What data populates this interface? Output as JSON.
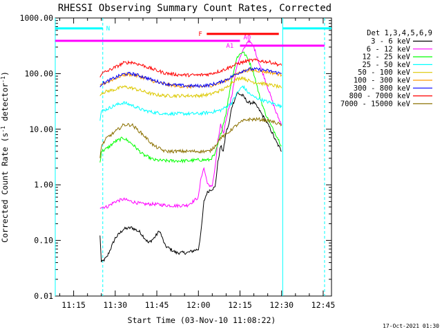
{
  "chart_data": {
    "type": "line",
    "title": "RHESSI Observing Summary Count Rates, Corrected",
    "xlabel": "Start Time (03-Nov-10 11:08:22)",
    "ylabel": "Corrected Count Rate (s⁻¹ detector⁻¹)",
    "ylabel_main": "Corrected Count Rate (s",
    "ylabel_exp1": "-1",
    "ylabel_mid": " detector",
    "ylabel_exp2": "-1",
    "ylabel_end": ")",
    "x_ticks": [
      "11:15",
      "11:30",
      "11:45",
      "12:00",
      "12:15",
      "12:30",
      "12:45"
    ],
    "x_tick_minutes": [
      15,
      30,
      45,
      60,
      75,
      90,
      105
    ],
    "xlim_minutes": [
      8.37,
      108
    ],
    "y_scale": "log",
    "ylim": [
      0.01,
      1000
    ],
    "y_ticks": [
      "1000.00",
      "100.00",
      "10.00",
      "1.00",
      "0.10",
      "0.01"
    ],
    "y_tick_values": [
      1000,
      100,
      10,
      1,
      0.1,
      0.01
    ],
    "legend_title": "Det 1,3,4,5,6,9",
    "legend_position": "top-right, outside plot",
    "series": [
      {
        "name": "3 - 6 keV",
        "color": "#000000",
        "points": [
          [
            24.5,
            0.12
          ],
          [
            25,
            0.04
          ],
          [
            27,
            0.05
          ],
          [
            30,
            0.11
          ],
          [
            33,
            0.16
          ],
          [
            36,
            0.17
          ],
          [
            39,
            0.14
          ],
          [
            42,
            0.09
          ],
          [
            44,
            0.11
          ],
          [
            46,
            0.15
          ],
          [
            48,
            0.08
          ],
          [
            52,
            0.06
          ],
          [
            56,
            0.06
          ],
          [
            60,
            0.07
          ],
          [
            61,
            0.15
          ],
          [
            62,
            0.5
          ],
          [
            63,
            0.7
          ],
          [
            64,
            0.8
          ],
          [
            66,
            0.9
          ],
          [
            67,
            2.5
          ],
          [
            68,
            5
          ],
          [
            69,
            4
          ],
          [
            70,
            9
          ],
          [
            71,
            12
          ],
          [
            72,
            25
          ],
          [
            74,
            45
          ],
          [
            76,
            40
          ],
          [
            78,
            30
          ],
          [
            80,
            30
          ],
          [
            82,
            22
          ],
          [
            84,
            15
          ],
          [
            86,
            10
          ],
          [
            88,
            6
          ],
          [
            90,
            4
          ]
        ]
      },
      {
        "name": "6 - 12 keV",
        "color": "#ff00ff",
        "points": [
          [
            24.5,
            0.4
          ],
          [
            27,
            0.4
          ],
          [
            30,
            0.5
          ],
          [
            33,
            0.55
          ],
          [
            36,
            0.5
          ],
          [
            40,
            0.45
          ],
          [
            44,
            0.45
          ],
          [
            48,
            0.43
          ],
          [
            52,
            0.42
          ],
          [
            56,
            0.43
          ],
          [
            58,
            0.5
          ],
          [
            60,
            0.6
          ],
          [
            61,
            1.4
          ],
          [
            62,
            2
          ],
          [
            63,
            1.2
          ],
          [
            64,
            0.9
          ],
          [
            65,
            1.0
          ],
          [
            66,
            2
          ],
          [
            67,
            6
          ],
          [
            68,
            12
          ],
          [
            69,
            8
          ],
          [
            70,
            15
          ],
          [
            72,
            40
          ],
          [
            74,
            150
          ],
          [
            76,
            250
          ],
          [
            78,
            400
          ],
          [
            80,
            300
          ],
          [
            82,
            150
          ],
          [
            84,
            80
          ],
          [
            86,
            40
          ],
          [
            88,
            20
          ],
          [
            90,
            12
          ]
        ]
      },
      {
        "name": "12 - 25 keV",
        "color": "#00ff00",
        "points": [
          [
            24.5,
            2.5
          ],
          [
            25,
            4
          ],
          [
            27,
            4.5
          ],
          [
            30,
            6
          ],
          [
            33,
            7
          ],
          [
            36,
            5.5
          ],
          [
            40,
            3.5
          ],
          [
            44,
            2.8
          ],
          [
            48,
            2.7
          ],
          [
            52,
            2.7
          ],
          [
            56,
            2.7
          ],
          [
            60,
            2.8
          ],
          [
            64,
            2.8
          ],
          [
            66,
            3.5
          ],
          [
            68,
            8
          ],
          [
            70,
            20
          ],
          [
            72,
            80
          ],
          [
            74,
            200
          ],
          [
            76,
            250
          ],
          [
            78,
            180
          ],
          [
            80,
            100
          ],
          [
            82,
            40
          ],
          [
            84,
            20
          ],
          [
            86,
            12
          ],
          [
            88,
            8
          ],
          [
            90,
            5
          ]
        ]
      },
      {
        "name": "25 - 50 keV",
        "color": "#00ffff",
        "points": [
          [
            24.5,
            15
          ],
          [
            25,
            21
          ],
          [
            27,
            23
          ],
          [
            30,
            27
          ],
          [
            33,
            30
          ],
          [
            36,
            27
          ],
          [
            40,
            22
          ],
          [
            44,
            20
          ],
          [
            48,
            19
          ],
          [
            52,
            19
          ],
          [
            56,
            19
          ],
          [
            60,
            19
          ],
          [
            64,
            20
          ],
          [
            68,
            22
          ],
          [
            70,
            25
          ],
          [
            72,
            30
          ],
          [
            74,
            45
          ],
          [
            76,
            60
          ],
          [
            78,
            45
          ],
          [
            80,
            38
          ],
          [
            82,
            35
          ],
          [
            84,
            32
          ],
          [
            86,
            30
          ],
          [
            88,
            28
          ],
          [
            90,
            25
          ]
        ]
      },
      {
        "name": "50 - 100 keV",
        "color": "#dcc800",
        "points": [
          [
            24.5,
            40
          ],
          [
            25,
            45
          ],
          [
            27,
            48
          ],
          [
            30,
            52
          ],
          [
            33,
            58
          ],
          [
            36,
            55
          ],
          [
            40,
            48
          ],
          [
            44,
            42
          ],
          [
            48,
            40
          ],
          [
            52,
            40
          ],
          [
            56,
            40
          ],
          [
            60,
            40
          ],
          [
            64,
            42
          ],
          [
            68,
            50
          ],
          [
            70,
            55
          ],
          [
            72,
            70
          ],
          [
            74,
            80
          ],
          [
            76,
            85
          ],
          [
            78,
            75
          ],
          [
            80,
            70
          ],
          [
            82,
            68
          ],
          [
            84,
            65
          ],
          [
            86,
            62
          ],
          [
            88,
            60
          ],
          [
            90,
            55
          ]
        ]
      },
      {
        "name": "100 - 300 keV",
        "color": "#ff9900",
        "points": [
          [
            24.5,
            58
          ],
          [
            25,
            64
          ],
          [
            27,
            70
          ],
          [
            30,
            82
          ],
          [
            33,
            95
          ],
          [
            36,
            96
          ],
          [
            40,
            85
          ],
          [
            44,
            72
          ],
          [
            48,
            64
          ],
          [
            52,
            60
          ],
          [
            56,
            58
          ],
          [
            60,
            58
          ],
          [
            64,
            60
          ],
          [
            68,
            68
          ],
          [
            70,
            75
          ],
          [
            72,
            85
          ],
          [
            74,
            100
          ],
          [
            76,
            110
          ],
          [
            78,
            115
          ],
          [
            80,
            115
          ],
          [
            82,
            112
          ],
          [
            84,
            108
          ],
          [
            86,
            105
          ],
          [
            88,
            100
          ],
          [
            90,
            95
          ]
        ]
      },
      {
        "name": "300 - 800 keV",
        "color": "#0000ff",
        "points": [
          [
            24.5,
            60
          ],
          [
            25,
            65
          ],
          [
            27,
            72
          ],
          [
            30,
            85
          ],
          [
            33,
            98
          ],
          [
            36,
            100
          ],
          [
            40,
            88
          ],
          [
            44,
            75
          ],
          [
            48,
            66
          ],
          [
            52,
            62
          ],
          [
            56,
            60
          ],
          [
            60,
            60
          ],
          [
            64,
            62
          ],
          [
            68,
            70
          ],
          [
            70,
            78
          ],
          [
            72,
            88
          ],
          [
            74,
            100
          ],
          [
            76,
            112
          ],
          [
            78,
            120
          ],
          [
            80,
            120
          ],
          [
            82,
            118
          ],
          [
            84,
            115
          ],
          [
            86,
            110
          ],
          [
            88,
            105
          ],
          [
            90,
            100
          ]
        ]
      },
      {
        "name": "800 - 7000 keV",
        "color": "#ff0000",
        "points": [
          [
            24.5,
            90
          ],
          [
            25,
            100
          ],
          [
            27,
            110
          ],
          [
            30,
            130
          ],
          [
            33,
            155
          ],
          [
            36,
            160
          ],
          [
            40,
            140
          ],
          [
            44,
            118
          ],
          [
            48,
            102
          ],
          [
            52,
            96
          ],
          [
            56,
            94
          ],
          [
            60,
            94
          ],
          [
            64,
            98
          ],
          [
            68,
            112
          ],
          [
            70,
            122
          ],
          [
            72,
            135
          ],
          [
            74,
            150
          ],
          [
            76,
            160
          ],
          [
            78,
            170
          ],
          [
            80,
            175
          ],
          [
            82,
            170
          ],
          [
            84,
            165
          ],
          [
            86,
            160
          ],
          [
            88,
            150
          ],
          [
            90,
            140
          ]
        ]
      },
      {
        "name": "7000 - 15000 keV",
        "color": "#8b7000",
        "points": [
          [
            24.5,
            3
          ],
          [
            25,
            5
          ],
          [
            27,
            7
          ],
          [
            30,
            9
          ],
          [
            33,
            12
          ],
          [
            36,
            12
          ],
          [
            40,
            8
          ],
          [
            44,
            5
          ],
          [
            48,
            4
          ],
          [
            52,
            4
          ],
          [
            56,
            4
          ],
          [
            60,
            4
          ],
          [
            64,
            4
          ],
          [
            66,
            5
          ],
          [
            68,
            7
          ],
          [
            70,
            8
          ],
          [
            72,
            10
          ],
          [
            74,
            12
          ],
          [
            76,
            14
          ],
          [
            78,
            15
          ],
          [
            80,
            15
          ],
          [
            82,
            15
          ],
          [
            84,
            14.5
          ],
          [
            86,
            14
          ],
          [
            88,
            13
          ],
          [
            90,
            12
          ]
        ]
      }
    ],
    "annotations": {
      "night": {
        "label": "N",
        "color": "#00ffff",
        "segments": [
          [
            8.37,
            25.5
          ],
          [
            90.4,
            108
          ]
        ],
        "vlines_dashed": [
          25.5,
          105.5
        ],
        "vline_solid": 90.4
      },
      "flare": {
        "label": "F",
        "color": "#ff0000",
        "start": 63,
        "end": 89
      },
      "attenuator0": {
        "label": "A0",
        "color": "#ff00ff",
        "start": 8.37,
        "end": 75
      },
      "attenuator1": {
        "label": "A1",
        "color": "#ff00ff",
        "start": 75,
        "end": 105.5
      }
    },
    "footer_date": "17-Oct-2021 01:30"
  }
}
